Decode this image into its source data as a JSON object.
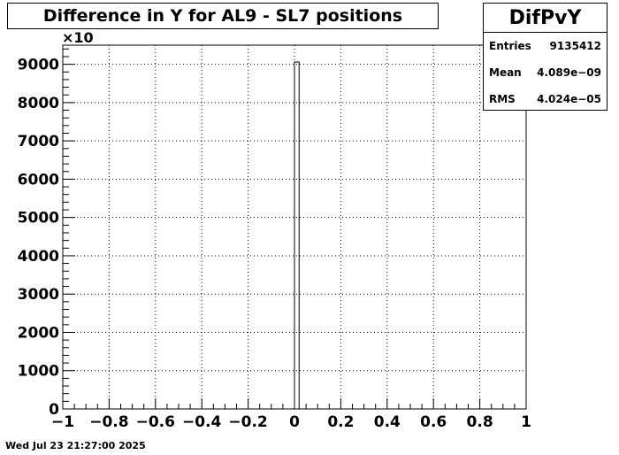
{
  "chart_data": {
    "type": "bar",
    "title": "Difference in Y for AL9 - SL7 positions",
    "xlim": [
      -1,
      1
    ],
    "ylim": [
      0,
      9500
    ],
    "y_multiplier_label": "×10",
    "x_ticks": [
      -1,
      -0.8,
      -0.6,
      -0.4,
      -0.2,
      0,
      0.2,
      0.4,
      0.6,
      0.8,
      1
    ],
    "x_tick_labels": [
      "−1",
      "−0.8",
      "−0.6",
      "−0.4",
      "−0.2",
      "0",
      "0.2",
      "0.4",
      "0.6",
      "0.8",
      "1"
    ],
    "y_ticks": [
      0,
      1000,
      2000,
      3000,
      4000,
      5000,
      6000,
      7000,
      8000,
      9000
    ],
    "y_tick_labels": [
      "0",
      "1000",
      "2000",
      "3000",
      "4000",
      "5000",
      "6000",
      "7000",
      "8000",
      "9000"
    ],
    "grid": true,
    "bins": [
      {
        "x_low": 0.0,
        "x_high": 0.02,
        "value": 9060
      }
    ]
  },
  "stats": {
    "name": "DifPvY",
    "rows": [
      {
        "label": "Entries",
        "value": "9135412"
      },
      {
        "label": "Mean",
        "value": "4.089e−09"
      },
      {
        "label": "RMS",
        "value": "4.024e−05"
      }
    ]
  },
  "footer": {
    "date": "Wed Jul 23 21:27:00 2025"
  }
}
